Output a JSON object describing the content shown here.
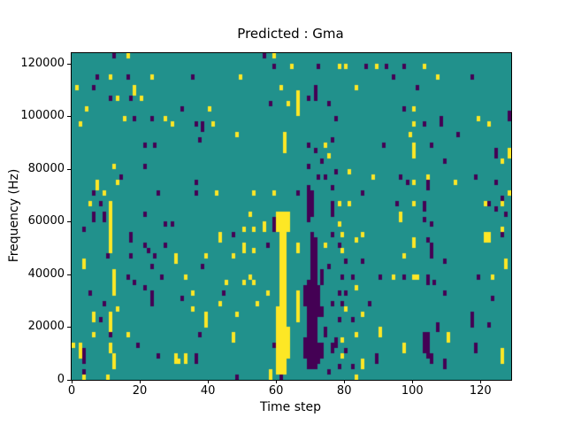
{
  "chart_data": {
    "type": "heatmap",
    "title": "Predicted : Gma",
    "xlabel": "Time step",
    "ylabel": "Frequency (Hz)",
    "x_ticks": [
      0,
      20,
      40,
      60,
      80,
      100,
      120
    ],
    "y_ticks": [
      0,
      20000,
      40000,
      60000,
      80000,
      100000,
      120000
    ],
    "x_range": [
      0,
      129
    ],
    "y_range": [
      0,
      124000
    ],
    "grid": {
      "cols": 129,
      "rows": 62,
      "hz_per_row": 2000,
      "legend": "none"
    },
    "colors": {
      "background": "#21918c",
      "high": "#fde725",
      "low": "#440154",
      "axes": "#000000",
      "figure": "#ffffff"
    },
    "cells_note": "runs of colored cells: [time_col, row_from_bottom_start, row_from_bottom_end]; high=yellow, low=dark-purple; all other cells teal",
    "cells_high": [
      [
        1,
        55,
        55
      ],
      [
        2,
        48,
        48
      ],
      [
        3,
        21,
        22
      ],
      [
        3,
        0,
        1
      ],
      [
        2,
        4,
        6
      ],
      [
        0,
        6,
        6
      ],
      [
        4,
        51,
        51
      ],
      [
        5,
        33,
        33
      ],
      [
        6,
        11,
        12
      ],
      [
        6,
        8,
        8
      ],
      [
        7,
        36,
        37
      ],
      [
        9,
        35,
        35
      ],
      [
        10,
        0,
        0
      ],
      [
        11,
        57,
        57
      ],
      [
        11,
        24,
        33
      ],
      [
        11,
        9,
        12
      ],
      [
        11,
        5,
        6
      ],
      [
        12,
        16,
        20
      ],
      [
        12,
        2,
        4
      ],
      [
        12,
        40,
        40
      ],
      [
        13,
        53,
        53
      ],
      [
        13,
        37,
        37
      ],
      [
        13,
        13,
        13
      ],
      [
        15,
        49,
        49
      ],
      [
        16,
        61,
        61
      ],
      [
        16,
        8,
        8
      ],
      [
        18,
        55,
        55
      ],
      [
        18,
        54,
        54
      ],
      [
        20,
        53,
        53
      ],
      [
        23,
        57,
        57
      ],
      [
        27,
        49,
        49
      ],
      [
        29,
        48,
        48
      ],
      [
        30,
        22,
        23
      ],
      [
        30,
        3,
        4
      ],
      [
        31,
        3,
        3
      ],
      [
        33,
        19,
        19
      ],
      [
        33,
        3,
        4
      ],
      [
        35,
        16,
        16
      ],
      [
        35,
        13,
        13
      ],
      [
        39,
        23,
        23
      ],
      [
        39,
        10,
        12
      ],
      [
        40,
        51,
        51
      ],
      [
        41,
        48,
        48
      ],
      [
        42,
        35,
        35
      ],
      [
        43,
        26,
        27
      ],
      [
        43,
        14,
        14
      ],
      [
        45,
        18,
        18
      ],
      [
        47,
        23,
        23
      ],
      [
        47,
        7,
        8
      ],
      [
        48,
        46,
        46
      ],
      [
        48,
        12,
        12
      ],
      [
        49,
        57,
        57
      ],
      [
        50,
        28,
        28
      ],
      [
        50,
        24,
        25
      ],
      [
        50,
        18,
        18
      ],
      [
        52,
        31,
        31
      ],
      [
        52,
        19,
        19
      ],
      [
        53,
        35,
        35
      ],
      [
        53,
        28,
        28
      ],
      [
        53,
        24,
        24
      ],
      [
        53,
        18,
        18
      ],
      [
        54,
        14,
        14
      ],
      [
        56,
        28,
        29
      ],
      [
        57,
        16,
        16
      ],
      [
        58,
        0,
        1
      ],
      [
        59,
        35,
        35
      ],
      [
        59,
        61,
        61
      ],
      [
        60,
        1,
        13
      ],
      [
        60,
        28,
        31
      ],
      [
        61,
        1,
        31
      ],
      [
        61,
        55,
        55
      ],
      [
        62,
        1,
        31
      ],
      [
        62,
        43,
        46
      ],
      [
        63,
        4,
        9
      ],
      [
        63,
        28,
        31
      ],
      [
        63,
        52,
        52
      ],
      [
        64,
        59,
        59
      ],
      [
        66,
        50,
        54
      ],
      [
        66,
        24,
        25
      ],
      [
        66,
        11,
        16
      ],
      [
        74,
        44,
        44
      ],
      [
        74,
        25,
        25
      ],
      [
        75,
        42,
        42
      ],
      [
        78,
        59,
        59
      ],
      [
        78,
        33,
        33
      ],
      [
        78,
        29,
        29
      ],
      [
        79,
        27,
        27
      ],
      [
        79,
        24,
        24
      ],
      [
        79,
        7,
        7
      ],
      [
        79,
        4,
        4
      ],
      [
        80,
        59,
        59
      ],
      [
        80,
        13,
        13
      ],
      [
        81,
        39,
        39
      ],
      [
        81,
        33,
        33
      ],
      [
        83,
        55,
        55
      ],
      [
        83,
        26,
        26
      ],
      [
        83,
        17,
        17
      ],
      [
        83,
        8,
        8
      ],
      [
        83,
        0,
        0
      ],
      [
        85,
        27,
        27
      ],
      [
        85,
        12,
        12
      ],
      [
        85,
        2,
        3
      ],
      [
        88,
        38,
        38
      ],
      [
        89,
        59,
        59
      ],
      [
        90,
        8,
        9
      ],
      [
        94,
        19,
        19
      ],
      [
        96,
        30,
        31
      ],
      [
        97,
        23,
        23
      ],
      [
        97,
        5,
        6
      ],
      [
        99,
        46,
        46
      ],
      [
        100,
        51,
        51
      ],
      [
        100,
        48,
        48
      ],
      [
        100,
        42,
        44
      ],
      [
        100,
        37,
        37
      ],
      [
        100,
        33,
        33
      ],
      [
        100,
        25,
        26
      ],
      [
        100,
        19,
        19
      ],
      [
        101,
        19,
        19
      ],
      [
        103,
        59,
        59
      ],
      [
        104,
        38,
        38
      ],
      [
        107,
        57,
        57
      ],
      [
        110,
        7,
        8
      ],
      [
        112,
        37,
        37
      ],
      [
        119,
        49,
        49
      ],
      [
        121,
        26,
        27
      ],
      [
        121,
        33,
        33
      ],
      [
        122,
        26,
        27
      ],
      [
        122,
        48,
        48
      ],
      [
        123,
        19,
        19
      ],
      [
        126,
        41,
        41
      ],
      [
        126,
        28,
        28
      ],
      [
        126,
        3,
        5
      ],
      [
        126,
        33,
        33
      ],
      [
        127,
        21,
        22
      ],
      [
        128,
        42,
        43
      ],
      [
        128,
        35,
        35
      ]
    ],
    "cells_low": [
      [
        3,
        28,
        28
      ],
      [
        3,
        3,
        5
      ],
      [
        3,
        1,
        1
      ],
      [
        5,
        16,
        16
      ],
      [
        6,
        55,
        55
      ],
      [
        6,
        35,
        35
      ],
      [
        6,
        30,
        31
      ],
      [
        7,
        57,
        57
      ],
      [
        8,
        33,
        33
      ],
      [
        8,
        11,
        11
      ],
      [
        9,
        30,
        31
      ],
      [
        9,
        14,
        14
      ],
      [
        10,
        23,
        23
      ],
      [
        11,
        53,
        53
      ],
      [
        11,
        8,
        8
      ],
      [
        12,
        61,
        61
      ],
      [
        14,
        38,
        38
      ],
      [
        16,
        57,
        57
      ],
      [
        16,
        19,
        19
      ],
      [
        17,
        53,
        53
      ],
      [
        17,
        26,
        27
      ],
      [
        17,
        23,
        23
      ],
      [
        18,
        49,
        49
      ],
      [
        18,
        18,
        18
      ],
      [
        19,
        6,
        6
      ],
      [
        21,
        44,
        44
      ],
      [
        21,
        40,
        40
      ],
      [
        21,
        31,
        31
      ],
      [
        21,
        25,
        25
      ],
      [
        21,
        17,
        17
      ],
      [
        22,
        24,
        24
      ],
      [
        23,
        49,
        49
      ],
      [
        23,
        21,
        21
      ],
      [
        23,
        14,
        16
      ],
      [
        24,
        44,
        44
      ],
      [
        24,
        23,
        23
      ],
      [
        25,
        35,
        35
      ],
      [
        25,
        4,
        4
      ],
      [
        26,
        19,
        19
      ],
      [
        27,
        29,
        29
      ],
      [
        27,
        25,
        25
      ],
      [
        29,
        29,
        29
      ],
      [
        32,
        51,
        51
      ],
      [
        32,
        15,
        15
      ],
      [
        35,
        57,
        57
      ],
      [
        36,
        48,
        48
      ],
      [
        36,
        37,
        37
      ],
      [
        36,
        35,
        35
      ],
      [
        36,
        3,
        4
      ],
      [
        37,
        45,
        45
      ],
      [
        37,
        8,
        8
      ],
      [
        38,
        47,
        48
      ],
      [
        38,
        21,
        21
      ],
      [
        44,
        16,
        16
      ],
      [
        47,
        27,
        27
      ],
      [
        48,
        0,
        0
      ],
      [
        56,
        61,
        61
      ],
      [
        57,
        25,
        25
      ],
      [
        58,
        52,
        52
      ],
      [
        59,
        59,
        59
      ],
      [
        59,
        28,
        30
      ],
      [
        59,
        6,
        6
      ],
      [
        61,
        0,
        0
      ],
      [
        66,
        35,
        35
      ],
      [
        68,
        14,
        17
      ],
      [
        68,
        4,
        7
      ],
      [
        69,
        30,
        36
      ],
      [
        69,
        2,
        18
      ],
      [
        69,
        53,
        53
      ],
      [
        69,
        44,
        44
      ],
      [
        69,
        40,
        40
      ],
      [
        70,
        31,
        35
      ],
      [
        70,
        2,
        27
      ],
      [
        71,
        2,
        26
      ],
      [
        71,
        43,
        43
      ],
      [
        71,
        53,
        55
      ],
      [
        72,
        59,
        59
      ],
      [
        72,
        38,
        38
      ],
      [
        72,
        12,
        17
      ],
      [
        72,
        3,
        6
      ],
      [
        73,
        41,
        41
      ],
      [
        73,
        18,
        20
      ],
      [
        73,
        12,
        13
      ],
      [
        73,
        4,
        6
      ],
      [
        74,
        38,
        38
      ],
      [
        74,
        8,
        9
      ],
      [
        75,
        52,
        52
      ],
      [
        75,
        21,
        21
      ],
      [
        75,
        1,
        1
      ],
      [
        76,
        45,
        45
      ],
      [
        76,
        36,
        36
      ],
      [
        76,
        31,
        33
      ],
      [
        76,
        27,
        27
      ],
      [
        76,
        14,
        14
      ],
      [
        76,
        5,
        6
      ],
      [
        77,
        49,
        49
      ],
      [
        77,
        39,
        39
      ],
      [
        77,
        6,
        7
      ],
      [
        78,
        25,
        25
      ],
      [
        78,
        16,
        16
      ],
      [
        78,
        11,
        11
      ],
      [
        78,
        2,
        2
      ],
      [
        79,
        19,
        19
      ],
      [
        79,
        14,
        14
      ],
      [
        80,
        22,
        22
      ],
      [
        80,
        16,
        16
      ],
      [
        80,
        5,
        5
      ],
      [
        82,
        19,
        19
      ],
      [
        82,
        11,
        11
      ],
      [
        82,
        2,
        2
      ],
      [
        85,
        35,
        35
      ],
      [
        85,
        22,
        22
      ],
      [
        86,
        59,
        59
      ],
      [
        87,
        14,
        14
      ],
      [
        89,
        3,
        4
      ],
      [
        90,
        19,
        19
      ],
      [
        91,
        44,
        44
      ],
      [
        92,
        59,
        59
      ],
      [
        94,
        57,
        57
      ],
      [
        95,
        33,
        33
      ],
      [
        96,
        38,
        38
      ],
      [
        97,
        59,
        59
      ],
      [
        97,
        51,
        51
      ],
      [
        97,
        19,
        19
      ],
      [
        98,
        37,
        37
      ],
      [
        101,
        55,
        55
      ],
      [
        103,
        48,
        48
      ],
      [
        103,
        32,
        33
      ],
      [
        103,
        30,
        30
      ],
      [
        103,
        5,
        8
      ],
      [
        104,
        36,
        37
      ],
      [
        104,
        26,
        26
      ],
      [
        104,
        18,
        19
      ],
      [
        104,
        4,
        8
      ],
      [
        105,
        44,
        44
      ],
      [
        105,
        29,
        29
      ],
      [
        105,
        23,
        25
      ],
      [
        105,
        3,
        4
      ],
      [
        106,
        18,
        18
      ],
      [
        107,
        9,
        10
      ],
      [
        108,
        48,
        49
      ],
      [
        109,
        41,
        41
      ],
      [
        109,
        22,
        22
      ],
      [
        109,
        16,
        16
      ],
      [
        109,
        2,
        3
      ],
      [
        113,
        46,
        46
      ],
      [
        117,
        57,
        57
      ],
      [
        117,
        10,
        12
      ],
      [
        118,
        38,
        38
      ],
      [
        118,
        5,
        6
      ],
      [
        119,
        19,
        19
      ],
      [
        122,
        33,
        33
      ],
      [
        122,
        10,
        10
      ],
      [
        123,
        15,
        15
      ],
      [
        124,
        37,
        37
      ],
      [
        124,
        32,
        32
      ],
      [
        124,
        42,
        43
      ],
      [
        126,
        34,
        34
      ],
      [
        126,
        27,
        27
      ],
      [
        127,
        31,
        31
      ],
      [
        128,
        49,
        50
      ]
    ]
  }
}
